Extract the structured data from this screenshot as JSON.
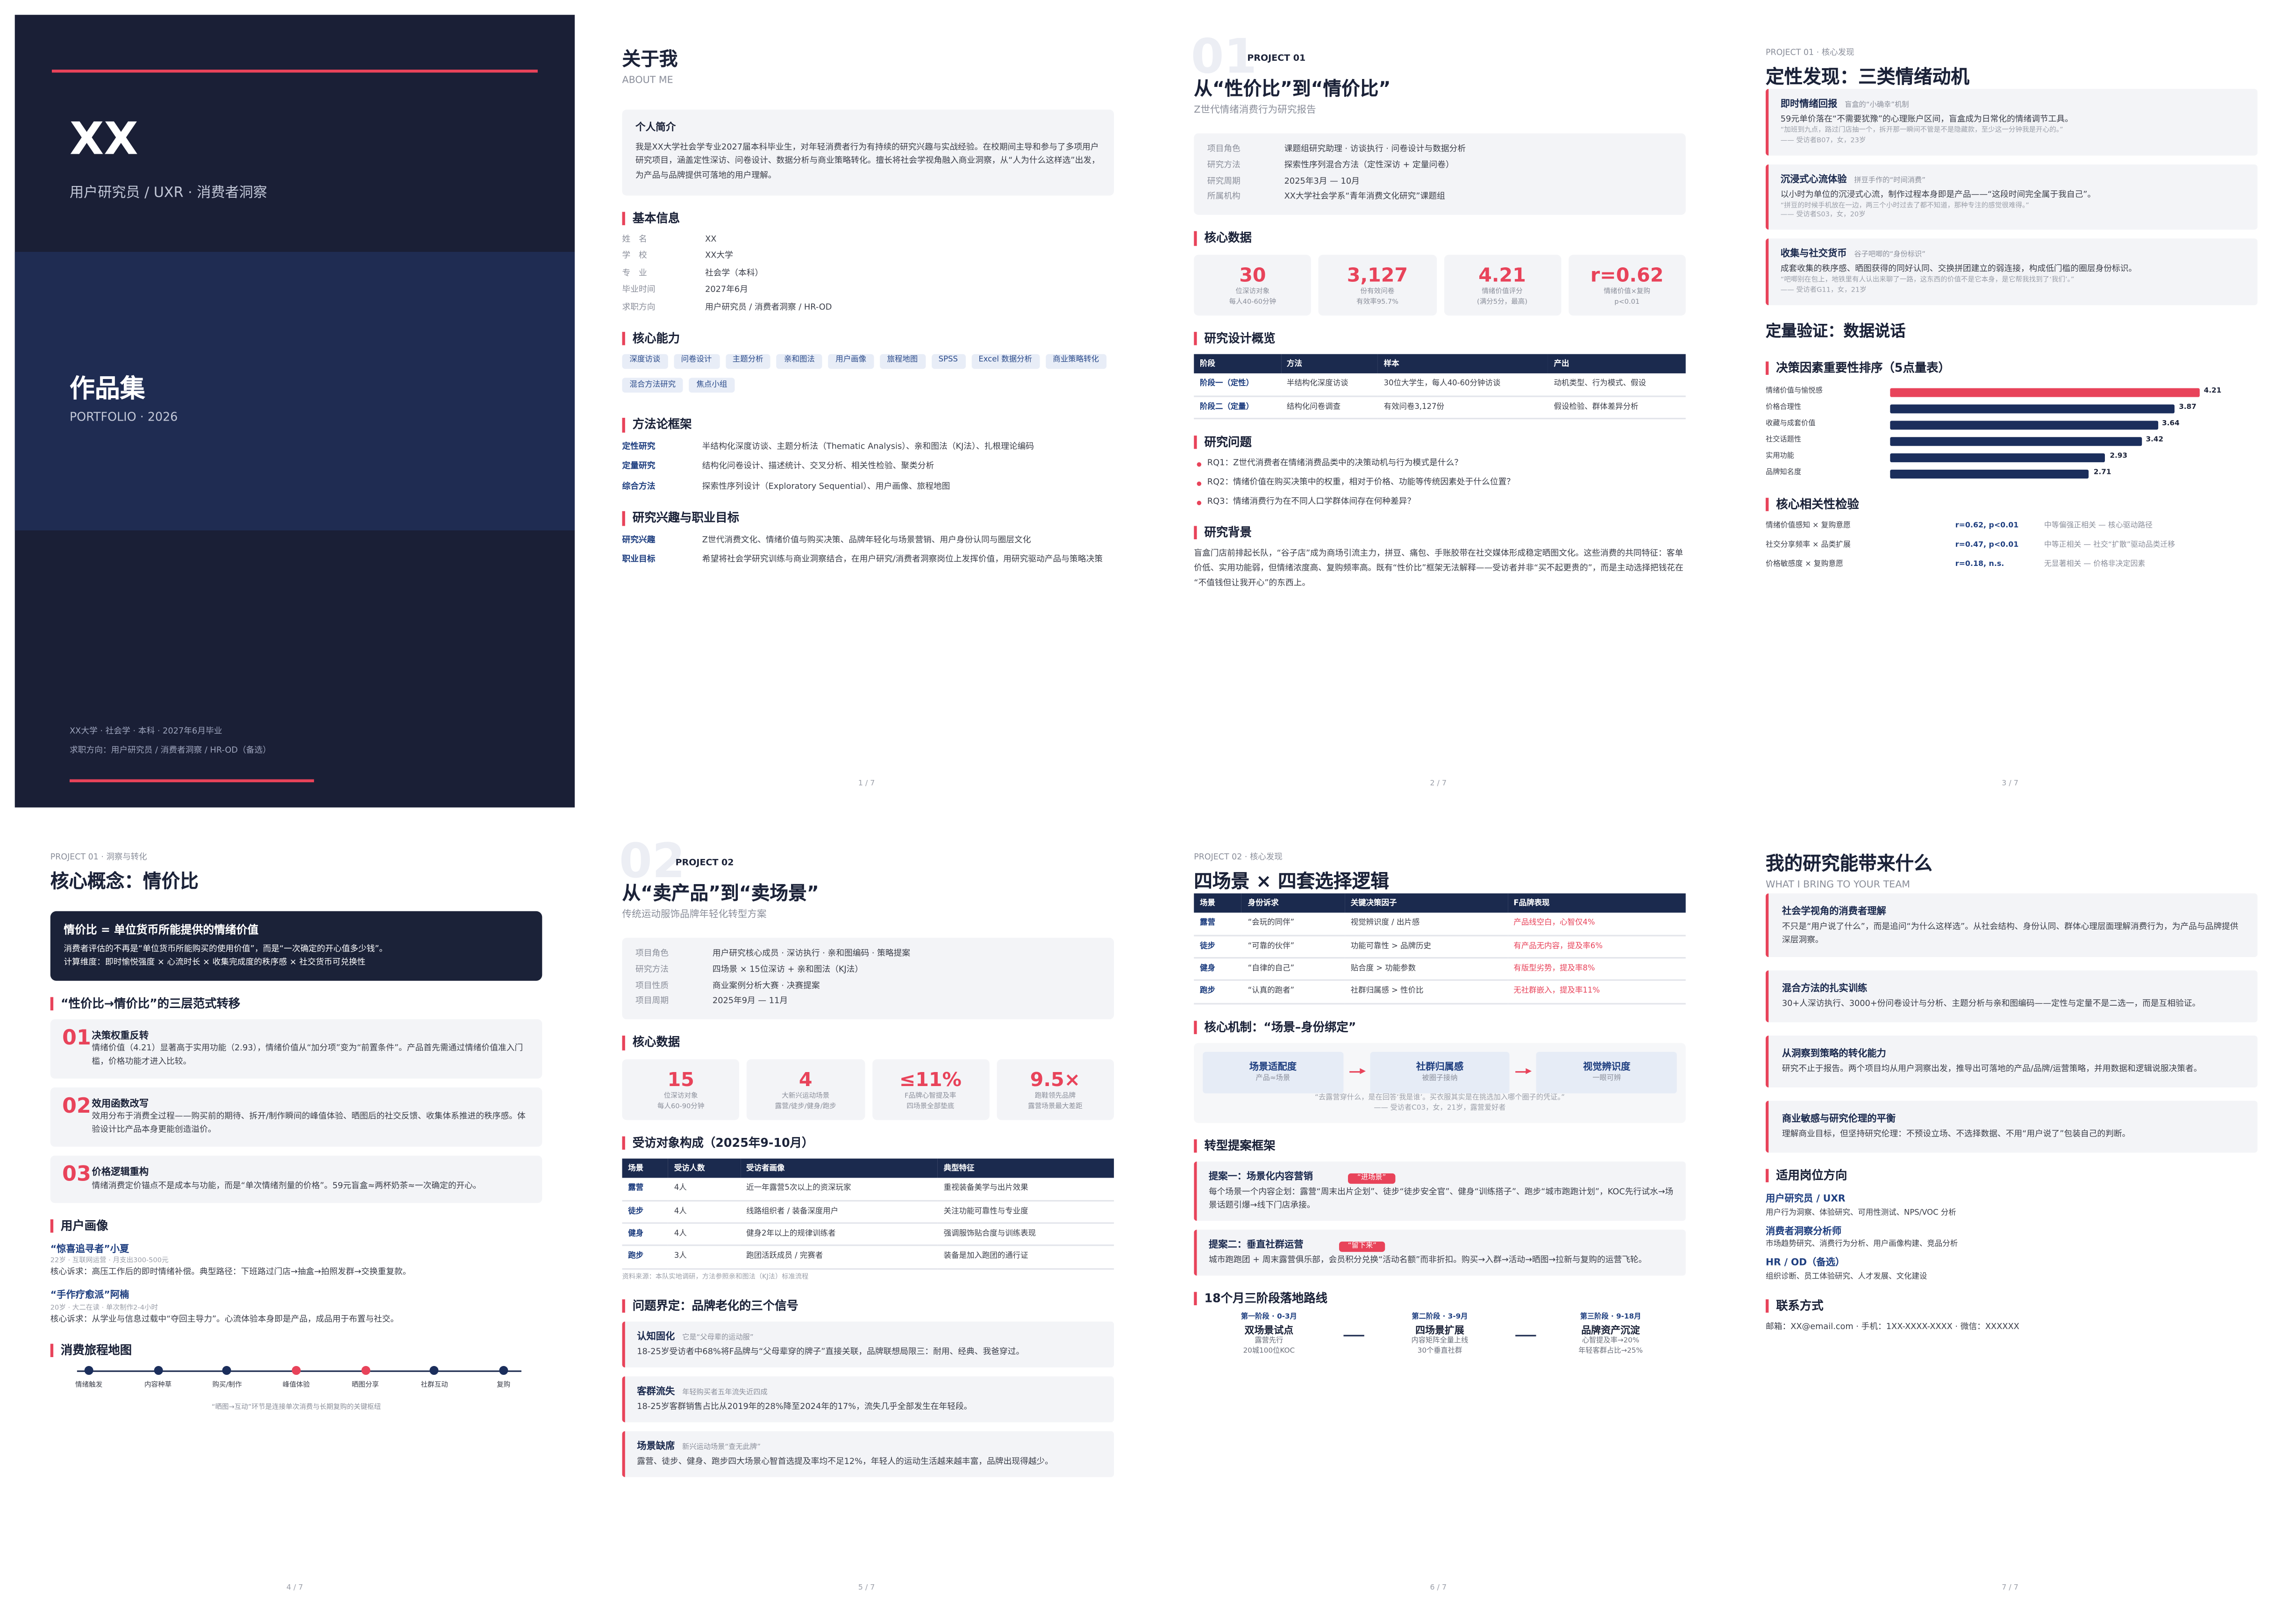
{
  "pages": [
    {
      "name": "XX",
      "role": "用户研究员 / UXR · 消费者洞察",
      "title": "作品集",
      "title_en": "PORTFOLIO · 2026",
      "info": [
        "XX大学 · 社会学 · 本科 · 2027年6月毕业",
        "求职方向：用户研究员 / 消费者洞察 / HR-OD（备选）"
      ]
    },
    {
      "title": "关于我",
      "subtitle": "ABOUT ME",
      "sections": [
        {
          "intro": {
            "title": "个人简介",
            "text": "我是XX大学社会学专业2027届本科毕业生，对年轻消费者行为有持续的研究兴趣与实战经验。在校期间主导和参与了多项用户研究项目，涵盖定性深访、问卷设计、数据分析与商业策略转化。擅长将社会学视角融入商业洞察，从“人为什么这样选”出发，为产品与品牌提供可落地的用户理解。"
          }
        },
        {
          "title": "基本信息",
          "rows": [
            [
              "姓　名",
              "XX"
            ],
            [
              "学　校",
              "XX大学"
            ],
            [
              "专　业",
              "社会学（本科）"
            ],
            [
              "毕业时间",
              "2027年6月"
            ],
            [
              "求职方向",
              "用户研究员 / 消费者洞察 / HR-OD"
            ]
          ]
        },
        {
          "title": "核心能力",
          "tags": [
            "深度访谈",
            "问卷设计",
            "主题分析",
            "亲和图法",
            "用户画像",
            "旅程地图",
            "SPSS",
            "Excel 数据分析",
            "商业策略转化",
            "混合方法研究",
            "焦点小组"
          ]
        },
        {
          "title": "方法论框架",
          "defs": [
            [
              "定性研究",
              "半结构化深度访谈、主题分析法（Thematic Analysis）、亲和图法（KJ法）、扎根理论编码"
            ],
            [
              "定量研究",
              "结构化问卷设计、描述统计、交叉分析、相关性检验、聚类分析"
            ],
            [
              "综合方法",
              "探索性序列设计（Exploratory Sequential）、用户画像、旅程地图"
            ]
          ]
        },
        {
          "title": "研究兴趣与职业目标",
          "defs": [
            [
              "研究兴趣",
              "Z世代消费文化、情绪价值与购买决策、品牌年轻化与场景营销、用户身份认同与圈层文化"
            ],
            [
              "职业目标",
              "希望将社会学研究训练与商业洞察结合，在用户研究/消费者洞察岗位上发挥价值，用研究驱动产品与策略决策"
            ]
          ]
        }
      ],
      "page": "1 / 7"
    },
    {
      "number": "01",
      "project": "PROJECT 01",
      "title": "从“性价比”到“情价比”",
      "subtitle": "Z世代情绪消费行为研究报告",
      "sections": [
        {
          "facts": [
            [
              "项目角色",
              "课题组研究助理 · 访谈执行 · 问卷设计与数据分析"
            ],
            [
              "研究方法",
              "探索性序列混合方法（定性深访 + 定量问卷）"
            ],
            [
              "研究周期",
              "2025年3月 — 10月"
            ],
            [
              "所属机构",
              "XX大学社会学系“青年消费文化研究”课题组"
            ]
          ]
        },
        {
          "title": "核心数据",
          "stats": [
            {
              "value": 30,
              "label": "位深访对象",
              "note": "每人40-60分钟"
            },
            {
              "value": "3,127",
              "label": "份有效问卷",
              "note": "有效率95.7%"
            },
            {
              "value": 4.21,
              "label": "情绪价值评分",
              "note": "(满分5分，最高)"
            },
            {
              "value": "r=0.62",
              "label": "情绪价值×复购",
              "note": "p<0.01"
            }
          ]
        },
        {
          "title": "研究设计概览",
          "table": {
            "columns": [
              "阶段",
              "方法",
              "样本",
              "产出"
            ],
            "rows": [
              [
                "阶段一（定性）",
                "半结构化深度访谈",
                "30位大学生，每人40-60分钟访谈",
                "动机类型、行为模式、假设"
              ],
              [
                "阶段二（定量）",
                "结构化问卷调查",
                "有效问卷3,127份",
                "假设检验、群体差异分析"
              ]
            ]
          }
        },
        {
          "title": "研究问题",
          "items": [
            "RQ1：Z世代消费者在情绪消费品类中的决策动机与行为模式是什么？",
            "RQ2：情绪价值在购买决策中的权重，相对于价格、功能等传统因素处于什么位置？",
            "RQ3：情绪消费行为在不同人口学群体间存在何种差异？"
          ]
        },
        {
          "title": "研究背景",
          "text": "盲盒门店前排起长队，“谷子店”成为商场引流主力，拼豆、痛包、手账胶带在社交媒体形成稳定晒图文化。这些消费的共同特征：客单价低、实用功能弱，但情绪浓度高、复购频率高。既有“性价比”框架无法解释——受访者并非“买不起更贵的”，而是主动选择把钱花在“不值钱但让我开心”的东西上。"
        }
      ],
      "page": "2 / 7"
    },
    {
      "kicker": "PROJECT 01 · 核心发现",
      "title": "定性发现：三类情绪动机",
      "sections": [
        {
          "cards": [
            {
              "title": "即时情绪回报",
              "tag": "盲盒的“小确幸”机制",
              "text": "59元单价落在“不需要犹豫”的心理账户区间，盲盒成为日常化的情绪调节工具。",
              "quote": "“加班到九点，路过门店抽一个，拆开那一瞬间不管是不是隐藏款，至少这一分钟我是开心的。”",
              "source": "—— 受访者B07，女，23岁"
            },
            {
              "title": "沉浸式心流体验",
              "tag": "拼豆手作的“时间消费”",
              "text": "以小时为单位的沉浸式心流，制作过程本身即是产品——“这段时间完全属于我自己”。",
              "quote": "“拼豆的时候手机放在一边，两三个小时过去了都不知道，那种专注的感觉很难得。”",
              "source": "—— 受访者S03，女，20岁"
            },
            {
              "title": "收集与社交货币",
              "tag": "谷子吧唧的“身份标识”",
              "text": "成套收集的秩序感、晒图获得的同好认同、交换拼团建立的弱连接，构成低门槛的圈层身份标识。",
              "quote": "“吧唧别在包上，地铁里有人认出来聊了一路，这东西的价值不是它本身，是它帮我找到了‘我们’。”",
              "source": "—— 受访者G11，女，21岁"
            }
          ]
        },
        {
          "headline": "定量验证：数据说话"
        },
        {
          "title": "决策因素重要性排序（5点量表）",
          "bars": {
            "labels": [
              "情绪价值与愉悦感",
              "价格合理性",
              "收藏与成套价值",
              "社交话题性",
              "实用功能",
              "品牌知名度"
            ],
            "values": [
              4.21,
              3.87,
              3.64,
              3.42,
              2.93,
              2.71
            ],
            "colors": [
              "#e8435a",
              "#1b2e5c",
              "#1b2e5c",
              "#1b2e5c",
              "#1b2e5c",
              "#1b2e5c"
            ],
            "xlim": [
              0,
              5
            ]
          }
        },
        {
          "title": "核心相关性检验",
          "tests": [
            [
              "情绪价值感知 × 复购意愿",
              "r=0.62, p<0.01",
              "中等偏强正相关 — 核心驱动路径"
            ],
            [
              "社交分享频率 × 品类扩展",
              "r=0.47, p<0.01",
              "中等正相关 — 社交“扩散”驱动品类迁移"
            ],
            [
              "价格敏感度 × 复购意愿",
              "r=0.18, n.s.",
              "无显著相关 — 价格非决定因素"
            ]
          ]
        }
      ],
      "page": "3 / 7"
    },
    {
      "kicker": "PROJECT 01 · 洞察与转化",
      "title": "核心概念：情价比",
      "sections": [
        {
          "concept": {
            "title": "情价比 = 单位货币所能提供的情绪价值",
            "lines": [
              "消费者评估的不再是“单位货币所能购买的使用价值”，而是“一次确定的开心值多少钱”。",
              "计算维度：即时愉悦强度 × 心流时长 × 收集完成度的秩序感 × 社交货币可兑换性"
            ]
          }
        },
        {
          "title": "“性价比→情价比”的三层范式转移",
          "steps": [
            {
              "no": "01",
              "title": "决策权重反转",
              "text": "情绪价值（4.21）显著高于实用功能（2.93），情绪价值从“加分项”变为“前置条件”。产品首先需通过情绪价值准入门槛，价格功能才进入比较。"
            },
            {
              "no": "02",
              "title": "效用函数改写",
              "text": "效用分布于消费全过程——购买前的期待、拆开/制作瞬间的峰值体验、晒图后的社交反馈、收集体系推进的秩序感。体验设计比产品本身更能创造溢价。"
            },
            {
              "no": "03",
              "title": "价格逻辑重构",
              "text": "情绪消费定价锚点不是成本与功能，而是“单次情绪剂量的价格”。59元盲盒≈两杯奶茶≈一次确定的开心。"
            }
          ]
        },
        {
          "title": "用户画像",
          "personas": [
            {
              "name": "“惊喜追寻者”小夏",
              "meta": "22岁 · 互联网运营 · 月支出300-500元",
              "text": "核心诉求：高压工作后的即时情绪补偿。典型路径：下班路过门店→抽盒→拍照发群→交换重复款。"
            },
            {
              "name": "“手作疗愈派”阿楠",
              "meta": "20岁 · 大二在读 · 单次制作2-4小时",
              "text": "核心诉求：从学业与信息过载中“夺回主导力”。心流体验本身即是产品，成品用于布置与社交。"
            }
          ]
        },
        {
          "title": "消费旅程地图",
          "journey": {
            "steps": [
              {
                "label": "情绪触发",
                "color": "#1b2e5c"
              },
              {
                "label": "内容种草",
                "color": "#1b2e5c"
              },
              {
                "label": "购买/制作",
                "color": "#1b2e5c"
              },
              {
                "label": "峰值体验",
                "color": "#e8435a"
              },
              {
                "label": "晒图分享",
                "color": "#e8435a"
              },
              {
                "label": "社群互动",
                "color": "#1b2e5c"
              },
              {
                "label": "复购",
                "color": "#1b2e5c"
              }
            ],
            "note": "“晒图→互动”环节是连接单次消费与长期复购的关键枢纽"
          }
        }
      ],
      "page": "4 / 7"
    },
    {
      "number": "02",
      "project": "PROJECT 02",
      "title": "从“卖产品”到“卖场景”",
      "subtitle": "传统运动服饰品牌年轻化转型方案",
      "sections": [
        {
          "facts": [
            [
              "项目角色",
              "用户研究核心成员 · 深访执行 · 亲和图编码 · 策略提案"
            ],
            [
              "研究方法",
              "四场景 × 15位深访 + 亲和图法（KJ法）"
            ],
            [
              "项目性质",
              "商业案例分析大赛 · 决赛提案"
            ],
            [
              "项目周期",
              "2025年9月 — 11月"
            ]
          ]
        },
        {
          "title": "核心数据",
          "stats": [
            {
              "value": 15,
              "label": "位深访对象",
              "note": "每人60-90分钟"
            },
            {
              "value": 4,
              "label": "大新兴运动场景",
              "note": "露营/徒步/健身/跑步"
            },
            {
              "value": "≤11%",
              "label": "F品牌心智提及率",
              "note": "四场景全部垫底"
            },
            {
              "value": "9.5×",
              "label": "跑鞋领先品牌",
              "note": "露营场景最大差距"
            }
          ]
        },
        {
          "title": "受访对象构成（2025年9-10月）",
          "table": {
            "columns": [
              "场景",
              "受访人数",
              "受访者画像",
              "典型特征"
            ],
            "rows": [
              [
                "露营",
                "4人",
                "近一年露营5次以上的资深玩家",
                "重视装备美学与出片效果"
              ],
              [
                "徒步",
                "4人",
                "线路组织者 / 装备深度用户",
                "关注功能可靠性与专业度"
              ],
              [
                "健身",
                "4人",
                "健身2年以上的规律训练者",
                "强调服饰贴合度与训练表现"
              ],
              [
                "跑步",
                "3人",
                "跑团活跃成员 / 完赛者",
                "装备是加入跑团的通行证"
              ]
            ],
            "note": "资料来源：本队实地调研，方法参照亲和图法（KJ法）标准流程"
          }
        },
        {
          "title": "问题界定：品牌老化的三个信号",
          "cards": [
            {
              "title": "认知固化",
              "tag": "它是“父母辈的运动服”",
              "text": "18-25岁受访者中68%将F品牌与“父母辈穿的牌子”直接关联，品牌联想局限三：耐用、经典、我爸穿过。"
            },
            {
              "title": "客群流失",
              "tag": "年轻购买者五年流失近四成",
              "text": "18-25岁客群销售占比从2019年的28%降至2024年的17%，流失几乎全部发生在年轻段。"
            },
            {
              "title": "场景缺席",
              "tag": "新兴运动场景“查无此牌”",
              "text": "露营、徒步、健身、跑步四大场景心智首选提及率均不足12%，年轻人的运动生活越来越丰富，品牌出现得越少。"
            }
          ]
        }
      ],
      "page": "5 / 7"
    },
    {
      "kicker": "PROJECT 02 · 核心发现",
      "title": "四场景 × 四套选择逻辑",
      "sections": [
        {
          "table": {
            "columns": [
              "场景",
              "身份诉求",
              "关键决策因子",
              "F品牌表现"
            ],
            "rows": [
              [
                "露营",
                "“会玩的同伴”",
                "视觉辨识度 / 出片感",
                "产品线空白，心智仅4%"
              ],
              [
                "徒步",
                "“可靠的伙伴”",
                "功能可靠性 > 品牌历史",
                "有产品无内容，提及率6%"
              ],
              [
                "健身",
                "“自律的自己”",
                "贴合度 > 功能参数",
                "有版型劣势，提及率8%"
              ],
              [
                "跑步",
                "“认真的跑者”",
                "社群归属感 > 性价比",
                "无社群嵌入，提及率11%"
              ]
            ]
          }
        },
        {
          "title": "核心机制：“场景–身份绑定”",
          "flow": {
            "steps": [
              {
                "title": "场景适配度",
                "note": "产品≈场景"
              },
              {
                "title": "社群归属感",
                "note": "被圈子接纳"
              },
              {
                "title": "视觉辨识度",
                "note": "一眼可辨"
              }
            ],
            "quote": "“去露营穿什么，是在回答‘我是谁’。买衣服其实是在挑选加入哪个圈子的凭证。”",
            "source": "—— 受访者C03，女，21岁，露营爱好者"
          }
        },
        {
          "title": "转型提案框架",
          "cards": [
            {
              "title": "提案一：场景化内容营销",
              "tag": "“进场景”",
              "text": "每个场景一个内容企划：露营“周末出片企划”、徒步“徒步安全官”、健身“训练搭子”、跑步“城市跑跑计划”，KOC先行试水→场景话题引爆→线下门店承接。"
            },
            {
              "title": "提案二：垂直社群运营",
              "tag": "“留下来”",
              "text": "城市跑跑团 + 周末露营俱乐部，会员积分兑换“活动名额”而非折扣。购买→入群→活动→晒图→拉新与复购的运营飞轮。"
            }
          ]
        },
        {
          "title": "18个月三阶段落地路线",
          "phases": [
            {
              "stage": "第一阶段 · 0-3月",
              "title": "双场景试点",
              "lines": [
                "露营先行",
                "20城100位KOC"
              ]
            },
            {
              "stage": "第二阶段 · 3-9月",
              "title": "四场景扩展",
              "lines": [
                "内容矩阵全量上线",
                "30个垂直社群"
              ]
            },
            {
              "stage": "第三阶段 · 9-18月",
              "title": "品牌资产沉淀",
              "lines": [
                "心智提及率→20%",
                "年轻客群占比→25%"
              ]
            }
          ]
        }
      ],
      "page": "6 / 7"
    },
    {
      "title": "我的研究能带来什么",
      "subtitle": "WHAT I BRING TO YOUR TEAM",
      "sections": [
        {
          "cards": [
            {
              "title": "社会学视角的消费者理解",
              "text": "不只是“用户说了什么”，而是追问“为什么这样选”。从社会结构、身份认同、群体心理层面理解消费行为，为产品与品牌提供深层洞察。"
            },
            {
              "title": "混合方法的扎实训练",
              "text": "30+人深访执行、3000+份问卷设计与分析、主题分析与亲和图编码——定性与定量不是二选一，而是互相验证。"
            },
            {
              "title": "从洞察到策略的转化能力",
              "text": "研究不止于报告。两个项目均从用户洞察出发，推导出可落地的产品/品牌/运营策略，并用数据和逻辑说服决策者。"
            },
            {
              "title": "商业敏感与研究伦理的平衡",
              "text": "理解商业目标，但坚持研究伦理：不预设立场、不选择数据、不用“用户说了”包装自己的判断。"
            }
          ]
        },
        {
          "title": "适用岗位方向",
          "roles": [
            {
              "title": "用户研究员 / UXR",
              "text": "用户行为洞察、体验研究、可用性测试、NPS/VOC 分析"
            },
            {
              "title": "消费者洞察分析师",
              "text": "市场趋势研究、消费行为分析、用户画像构建、竞品分析"
            },
            {
              "title": "HR / OD（备选）",
              "text": "组织诊断、员工体验研究、人才发展、文化建设"
            }
          ]
        },
        {
          "title": "联系方式",
          "text": "邮箱：XX@email.com · 手机：1XX-XXXX-XXXX · 微信：XXXXXX"
        }
      ],
      "page": "7 / 7"
    }
  ]
}
